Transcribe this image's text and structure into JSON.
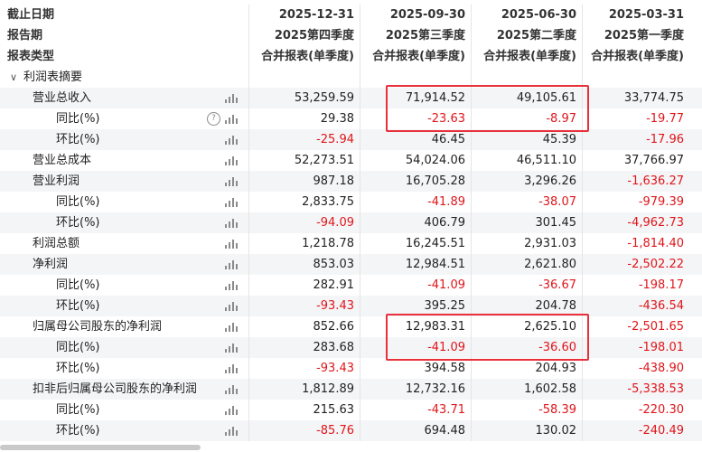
{
  "header": {
    "rows": [
      {
        "label": "截止日期",
        "cols": [
          "2025-12-31",
          "2025-09-30",
          "2025-06-30",
          "2025-03-31"
        ]
      },
      {
        "label": "报告期",
        "cols": [
          "2025第四季度",
          "2025第三季度",
          "2025第二季度",
          "2025第一季度"
        ]
      },
      {
        "label": "报表类型",
        "cols": [
          "合并报表(单季度)",
          "合并报表(单季度)",
          "合并报表(单季度)",
          "合并报表(单季度)"
        ]
      }
    ]
  },
  "section": {
    "title": "利润表摘要",
    "chevron_icon": "chevron-down-icon"
  },
  "rows": [
    {
      "label": "营业总收入",
      "indent": 1,
      "values": [
        "53,259.59",
        "71,914.52",
        "49,105.61",
        "33,774.75"
      ]
    },
    {
      "label": "同比(%)",
      "indent": 2,
      "help": true,
      "values": [
        "29.38",
        "-23.63",
        "-8.97",
        "-19.77"
      ]
    },
    {
      "label": "环比(%)",
      "indent": 2,
      "values": [
        "-25.94",
        "46.45",
        "45.39",
        "-17.96"
      ]
    },
    {
      "label": "营业总成本",
      "indent": 1,
      "values": [
        "52,273.51",
        "54,024.06",
        "46,511.10",
        "37,766.97"
      ]
    },
    {
      "label": "营业利润",
      "indent": 1,
      "values": [
        "987.18",
        "16,705.28",
        "3,296.26",
        "-1,636.27"
      ]
    },
    {
      "label": "同比(%)",
      "indent": 2,
      "values": [
        "2,833.75",
        "-41.89",
        "-38.07",
        "-979.39"
      ]
    },
    {
      "label": "环比(%)",
      "indent": 2,
      "values": [
        "-94.09",
        "406.79",
        "301.45",
        "-4,962.73"
      ]
    },
    {
      "label": "利润总额",
      "indent": 1,
      "values": [
        "1,218.78",
        "16,245.51",
        "2,931.03",
        "-1,814.40"
      ]
    },
    {
      "label": "净利润",
      "indent": 1,
      "values": [
        "853.03",
        "12,984.51",
        "2,621.80",
        "-2,502.22"
      ]
    },
    {
      "label": "同比(%)",
      "indent": 2,
      "values": [
        "282.91",
        "-41.09",
        "-36.67",
        "-198.17"
      ]
    },
    {
      "label": "环比(%)",
      "indent": 2,
      "values": [
        "-93.43",
        "395.25",
        "204.78",
        "-436.54"
      ]
    },
    {
      "label": "归属母公司股东的净利润",
      "indent": 1,
      "values": [
        "852.66",
        "12,983.31",
        "2,625.10",
        "-2,501.65"
      ]
    },
    {
      "label": "同比(%)",
      "indent": 2,
      "values": [
        "283.68",
        "-41.09",
        "-36.60",
        "-198.01"
      ]
    },
    {
      "label": "环比(%)",
      "indent": 2,
      "values": [
        "-93.43",
        "394.58",
        "204.93",
        "-438.90"
      ]
    },
    {
      "label": "扣非后归属母公司股东的净利润",
      "indent": 1,
      "values": [
        "1,812.89",
        "12,732.16",
        "1,602.58",
        "-5,338.53"
      ]
    },
    {
      "label": "同比(%)",
      "indent": 2,
      "values": [
        "215.63",
        "-43.71",
        "-58.39",
        "-220.30"
      ]
    },
    {
      "label": "环比(%)",
      "indent": 2,
      "values": [
        "-85.76",
        "694.48",
        "130.02",
        "-240.49"
      ]
    }
  ],
  "colors": {
    "negative": "#e0151a",
    "highlight": "#e8303a",
    "zebra": "#f4f5f7"
  },
  "icons": {
    "chart": "bar-chart-icon",
    "help": "help-circle-icon"
  }
}
